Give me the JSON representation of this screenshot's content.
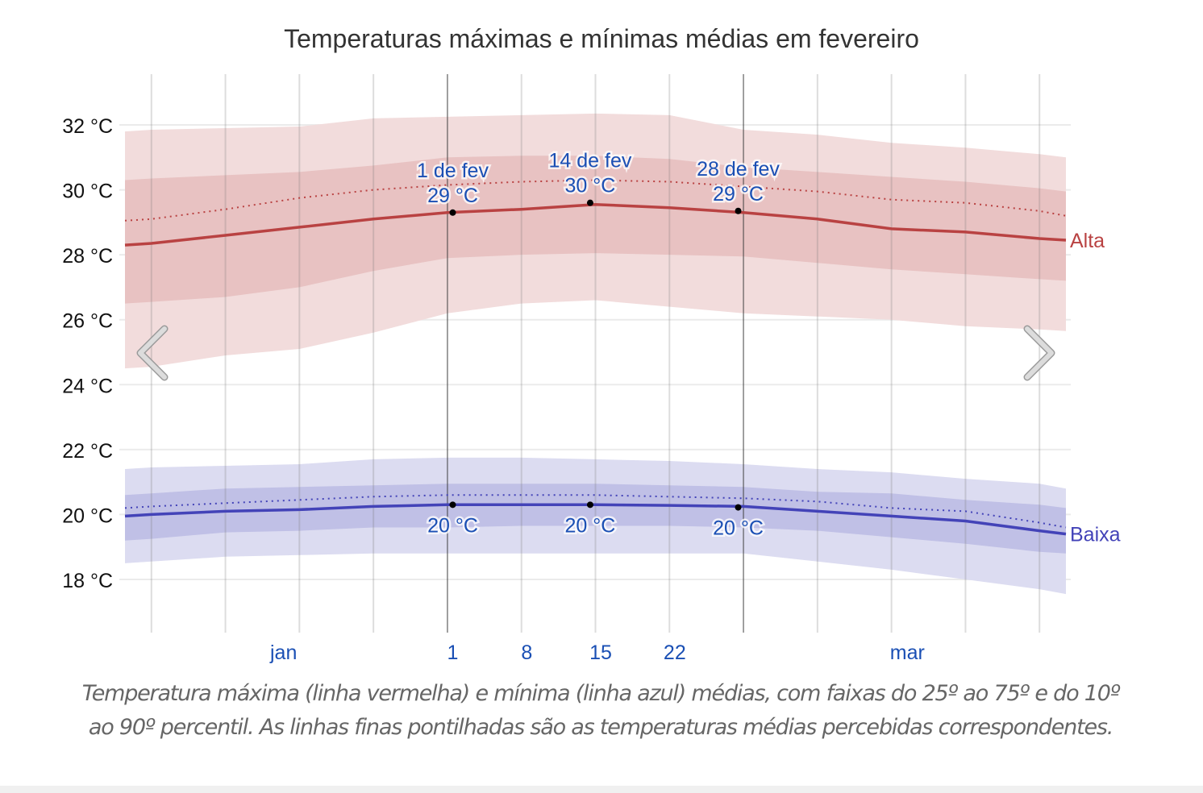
{
  "chart_data": {
    "type": "area",
    "title": "Temperaturas máximas e mínimas médias em fevereiro",
    "xlabel": "",
    "ylabel": "",
    "x_unit": "days relative to 1 de fev",
    "xlim": [
      -30.5,
      58.5
    ],
    "ylim": [
      16.5,
      33.5
    ],
    "y_ticks": [
      {
        "value": 18,
        "label": "18 °C"
      },
      {
        "value": 20,
        "label": "20 °C"
      },
      {
        "value": 22,
        "label": "22 °C"
      },
      {
        "value": 24,
        "label": "24 °C"
      },
      {
        "value": 26,
        "label": "26 °C"
      },
      {
        "value": 28,
        "label": "28 °C"
      },
      {
        "value": 30,
        "label": "30 °C"
      },
      {
        "value": 32,
        "label": "32 °C"
      }
    ],
    "x_gridlines": [
      -28,
      -21,
      -14,
      -7,
      0,
      7,
      14,
      21,
      28,
      35,
      42,
      49,
      56
    ],
    "x_highlight_lines": [
      0,
      28
    ],
    "x_ticks": [
      {
        "value": -15.5,
        "label": "jan"
      },
      {
        "value": 0.5,
        "label": "1"
      },
      {
        "value": 7.5,
        "label": "8"
      },
      {
        "value": 14.5,
        "label": "15"
      },
      {
        "value": 21.5,
        "label": "22"
      },
      {
        "value": 43.5,
        "label": "mar"
      }
    ],
    "grid": true,
    "x": [
      -30.5,
      -28,
      -21,
      -14,
      -7,
      0,
      7,
      14,
      21,
      28,
      35,
      42,
      49,
      56,
      58.5
    ],
    "series": [
      {
        "name": "Alta",
        "color": "#b94242",
        "mean": [
          28.3,
          28.35,
          28.6,
          28.85,
          29.1,
          29.3,
          29.4,
          29.55,
          29.45,
          29.3,
          29.1,
          28.8,
          28.7,
          28.5,
          28.45
        ],
        "feels_like": [
          29.05,
          29.1,
          29.4,
          29.75,
          30.0,
          30.15,
          30.25,
          30.3,
          30.25,
          30.1,
          29.95,
          29.7,
          29.6,
          29.35,
          29.2
        ],
        "p25": [
          26.5,
          26.55,
          26.7,
          27.0,
          27.5,
          27.9,
          28.0,
          28.05,
          28.0,
          27.95,
          27.75,
          27.55,
          27.4,
          27.25,
          27.2
        ],
        "p75": [
          30.3,
          30.35,
          30.45,
          30.55,
          30.75,
          31.0,
          31.05,
          31.05,
          30.95,
          30.7,
          30.55,
          30.4,
          30.25,
          30.05,
          29.95
        ],
        "p10": [
          24.5,
          24.55,
          24.9,
          25.1,
          25.6,
          26.2,
          26.5,
          26.6,
          26.4,
          26.2,
          26.1,
          26.0,
          25.8,
          25.7,
          25.65
        ],
        "p90": [
          31.8,
          31.85,
          31.9,
          31.95,
          32.2,
          32.25,
          32.3,
          32.35,
          32.3,
          31.85,
          31.7,
          31.45,
          31.3,
          31.1,
          31.0
        ],
        "label_anchor": 58.5
      },
      {
        "name": "Baixa",
        "color": "#4343b8",
        "mean": [
          19.95,
          20.0,
          20.1,
          20.15,
          20.25,
          20.3,
          20.3,
          20.3,
          20.28,
          20.25,
          20.1,
          19.95,
          19.8,
          19.5,
          19.4
        ],
        "feels_like": [
          20.2,
          20.25,
          20.35,
          20.45,
          20.55,
          20.6,
          20.6,
          20.6,
          20.55,
          20.5,
          20.4,
          20.2,
          20.1,
          19.75,
          19.6
        ],
        "p25": [
          19.2,
          19.25,
          19.45,
          19.5,
          19.6,
          19.6,
          19.65,
          19.65,
          19.65,
          19.6,
          19.5,
          19.3,
          19.1,
          18.85,
          18.8
        ],
        "p75": [
          20.6,
          20.65,
          20.8,
          20.85,
          20.9,
          20.95,
          20.95,
          20.95,
          20.9,
          20.85,
          20.7,
          20.65,
          20.45,
          20.3,
          20.2
        ],
        "p10": [
          18.5,
          18.55,
          18.7,
          18.75,
          18.8,
          18.8,
          18.8,
          18.8,
          18.8,
          18.8,
          18.55,
          18.3,
          18.0,
          17.7,
          17.55
        ],
        "p90": [
          21.4,
          21.45,
          21.5,
          21.55,
          21.7,
          21.75,
          21.75,
          21.7,
          21.65,
          21.55,
          21.4,
          21.3,
          21.1,
          20.95,
          20.8
        ],
        "label_anchor": 58.5
      }
    ],
    "annotations": [
      {
        "series": "Alta",
        "x": 0.5,
        "y": 29.3,
        "date": "1 de fev",
        "value": "29 °C"
      },
      {
        "series": "Alta",
        "x": 13.5,
        "y": 29.6,
        "date": "14 de fev",
        "value": "30 °C"
      },
      {
        "series": "Alta",
        "x": 27.5,
        "y": 29.35,
        "date": "28 de fev",
        "value": "29 °C"
      },
      {
        "series": "Baixa",
        "x": 0.5,
        "y": 20.3,
        "date": "",
        "value": "20 °C"
      },
      {
        "series": "Baixa",
        "x": 13.5,
        "y": 20.3,
        "date": "",
        "value": "20 °C"
      },
      {
        "series": "Baixa",
        "x": 27.5,
        "y": 20.22,
        "date": "",
        "value": "20 °C"
      }
    ],
    "legend": [
      {
        "name": "Alta",
        "placement": "right-end-of-line"
      },
      {
        "name": "Baixa",
        "placement": "right-end-of-line"
      }
    ]
  },
  "colors": {
    "alta_line": "#b94242",
    "alta_band_inner": "#e8c2c2",
    "alta_band_outer": "#f2dcdc",
    "baixa_line": "#4343b8",
    "baixa_band_inner": "#c0c0e6",
    "baixa_band_outer": "#dcdcf1",
    "annotation_text": "#1a4fb4",
    "axis_tick_text": "#1a4fb4"
  },
  "caption": "Temperatura máxima (linha vermelha) e mínima (linha azul) médias, com faixas do 25º ao 75º e do 10º ao 90º percentil. As linhas finas pontilhadas são as temperaturas médias percebidas correspondentes.",
  "navigation": {
    "prev_icon": "chevron-left-icon",
    "next_icon": "chevron-right-icon"
  }
}
